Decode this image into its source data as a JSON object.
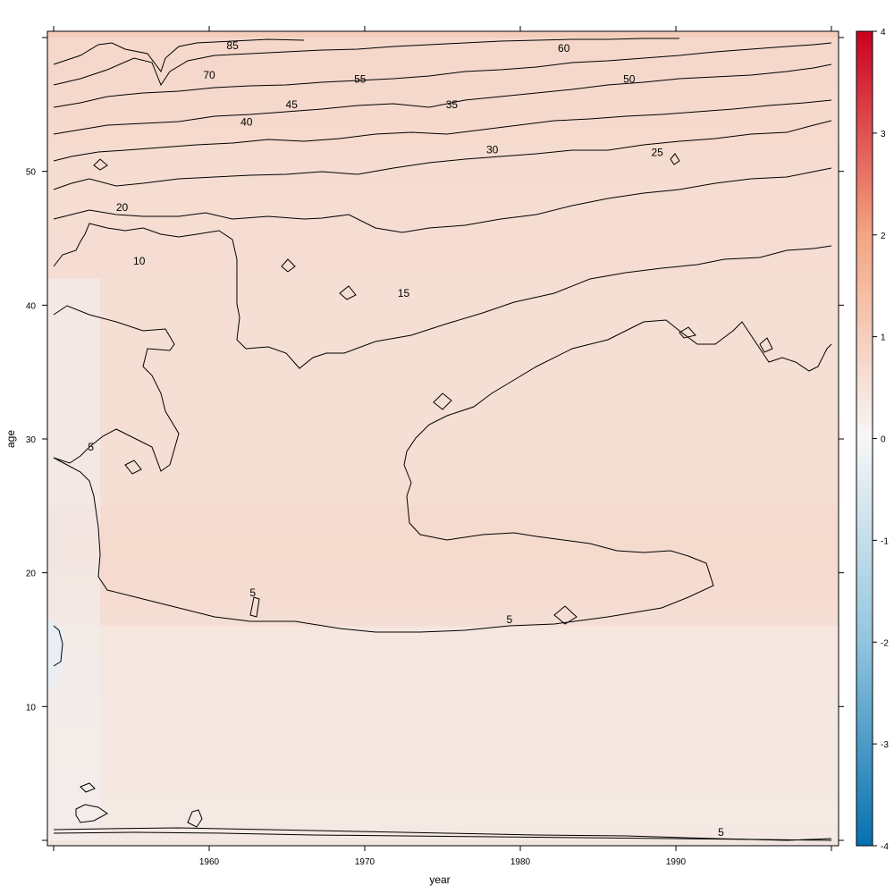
{
  "chart_data": {
    "type": "heatmap",
    "title": "",
    "xlabel": "year",
    "ylabel": "age",
    "xlim": [
      1950,
      2000
    ],
    "ylim": [
      0,
      60
    ],
    "x_ticks": [
      1960,
      1970,
      1980,
      1990
    ],
    "y_ticks": [
      10,
      20,
      30,
      40,
      50
    ],
    "x_tick_labels": [
      "1960",
      "1970",
      "1980",
      "1990"
    ],
    "y_tick_labels": [
      "10",
      "20",
      "30",
      "40",
      "50"
    ],
    "colorbar": {
      "min": -4,
      "max": 4,
      "ticks": [
        -4,
        -3,
        -2,
        -1,
        0,
        1,
        2,
        3,
        4
      ],
      "tick_labels": [
        "-4",
        "-3",
        "-2",
        "-1",
        "0",
        "1",
        "2",
        "3",
        "4"
      ],
      "colors": [
        "#0571b0",
        "#92c5de",
        "#f7f7f7",
        "#f4a582",
        "#ca0020"
      ]
    },
    "regions": [
      {
        "age_from": 0,
        "age_to": 1,
        "value": 0.3
      },
      {
        "age_from": 1,
        "age_to": 16,
        "value": 0.25
      },
      {
        "age_from": 16,
        "age_to": 25,
        "value": 0.55
      },
      {
        "age_from": 25,
        "age_to": 42,
        "value": 0.45
      },
      {
        "age_from": 42,
        "age_to": 52,
        "value": 0.5
      },
      {
        "age_from": 52,
        "age_to": 60,
        "value": 0.55
      }
    ],
    "contour_levels": [
      5,
      10,
      15,
      20,
      25,
      30,
      35,
      40,
      45,
      50,
      55,
      60,
      70,
      85
    ],
    "contour_labels": [
      {
        "text": "85",
        "year": 1961.5,
        "age": 59.4
      },
      {
        "text": "60",
        "year": 1982.8,
        "age": 59.2
      },
      {
        "text": "70",
        "year": 1960.0,
        "age": 57.2
      },
      {
        "text": "55",
        "year": 1969.7,
        "age": 56.9
      },
      {
        "text": "50",
        "year": 1987.0,
        "age": 56.9
      },
      {
        "text": "45",
        "year": 1965.3,
        "age": 55.0
      },
      {
        "text": "35",
        "year": 1975.6,
        "age": 55.0
      },
      {
        "text": "40",
        "year": 1962.4,
        "age": 53.7
      },
      {
        "text": "30",
        "year": 1978.2,
        "age": 51.6
      },
      {
        "text": "25",
        "year": 1988.8,
        "age": 51.4
      },
      {
        "text": "20",
        "year": 1954.4,
        "age": 47.3
      },
      {
        "text": "10",
        "year": 1955.5,
        "age": 43.3
      },
      {
        "text": "15",
        "year": 1972.5,
        "age": 40.9
      },
      {
        "text": "5",
        "year": 1952.4,
        "age": 29.4
      },
      {
        "text": "5",
        "year": 1962.8,
        "age": 18.5
      },
      {
        "text": "5",
        "year": 1979.3,
        "age": 16.5
      },
      {
        "text": "5",
        "year": 1992.9,
        "age": 0.6
      }
    ]
  }
}
